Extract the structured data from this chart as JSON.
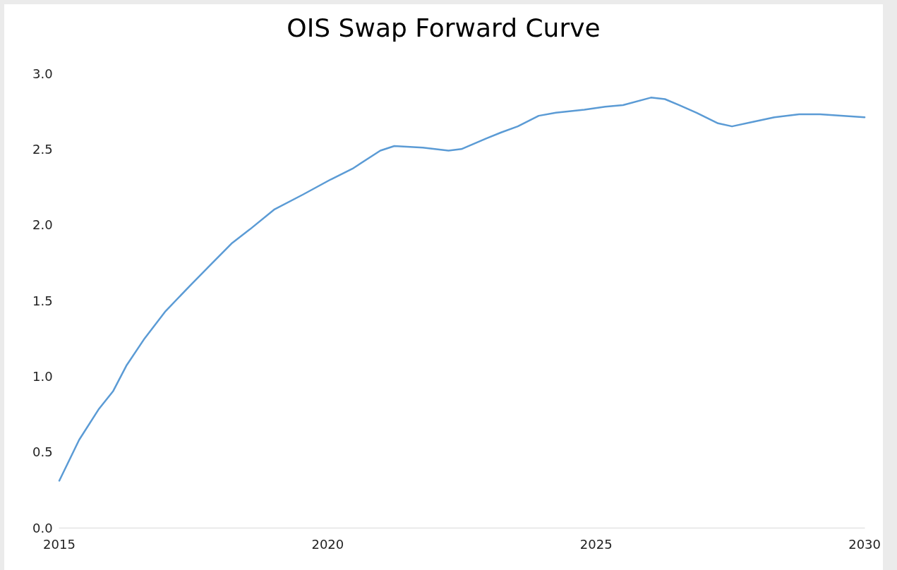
{
  "chart_data": {
    "type": "line",
    "title": "OIS Swap Forward Curve",
    "x": [
      2015.0,
      2015.37,
      2015.73,
      2016.0,
      2016.25,
      2016.59,
      2016.98,
      2017.44,
      2017.83,
      2018.22,
      2018.55,
      2019.0,
      2019.54,
      2020.06,
      2020.46,
      2020.98,
      2021.24,
      2021.77,
      2022.25,
      2022.49,
      2022.95,
      2023.23,
      2023.54,
      2023.93,
      2024.25,
      2024.78,
      2025.17,
      2025.5,
      2026.02,
      2026.28,
      2026.55,
      2026.87,
      2027.27,
      2027.53,
      2027.92,
      2028.32,
      2028.78,
      2029.17,
      2029.56,
      2030.0
    ],
    "series": [
      {
        "color": "#5b9bd5",
        "values": [
          0.31,
          0.58,
          0.78,
          0.9,
          1.07,
          1.25,
          1.43,
          1.6,
          1.74,
          1.88,
          1.97,
          2.1,
          2.2,
          2.3,
          2.37,
          2.49,
          2.52,
          2.51,
          2.49,
          2.5,
          2.57,
          2.61,
          2.65,
          2.72,
          2.74,
          2.76,
          2.78,
          2.79,
          2.84,
          2.83,
          2.79,
          2.74,
          2.67,
          2.65,
          2.68,
          2.71,
          2.73,
          2.73,
          2.72,
          2.71
        ]
      }
    ],
    "xlim": [
      2015,
      2030
    ],
    "xticks": [
      2015,
      2020,
      2025,
      2030
    ],
    "ylim": [
      0,
      3
    ],
    "yticks": [
      {
        "value": 0,
        "label": "0.0"
      },
      0.5,
      {
        "value": 1,
        "label": "1.0"
      },
      1.5,
      {
        "value": 2,
        "label": "2.0"
      },
      2.5,
      {
        "value": 3,
        "label": "3.0"
      }
    ],
    "grid": false,
    "marker": "none",
    "line_style": "solid"
  }
}
